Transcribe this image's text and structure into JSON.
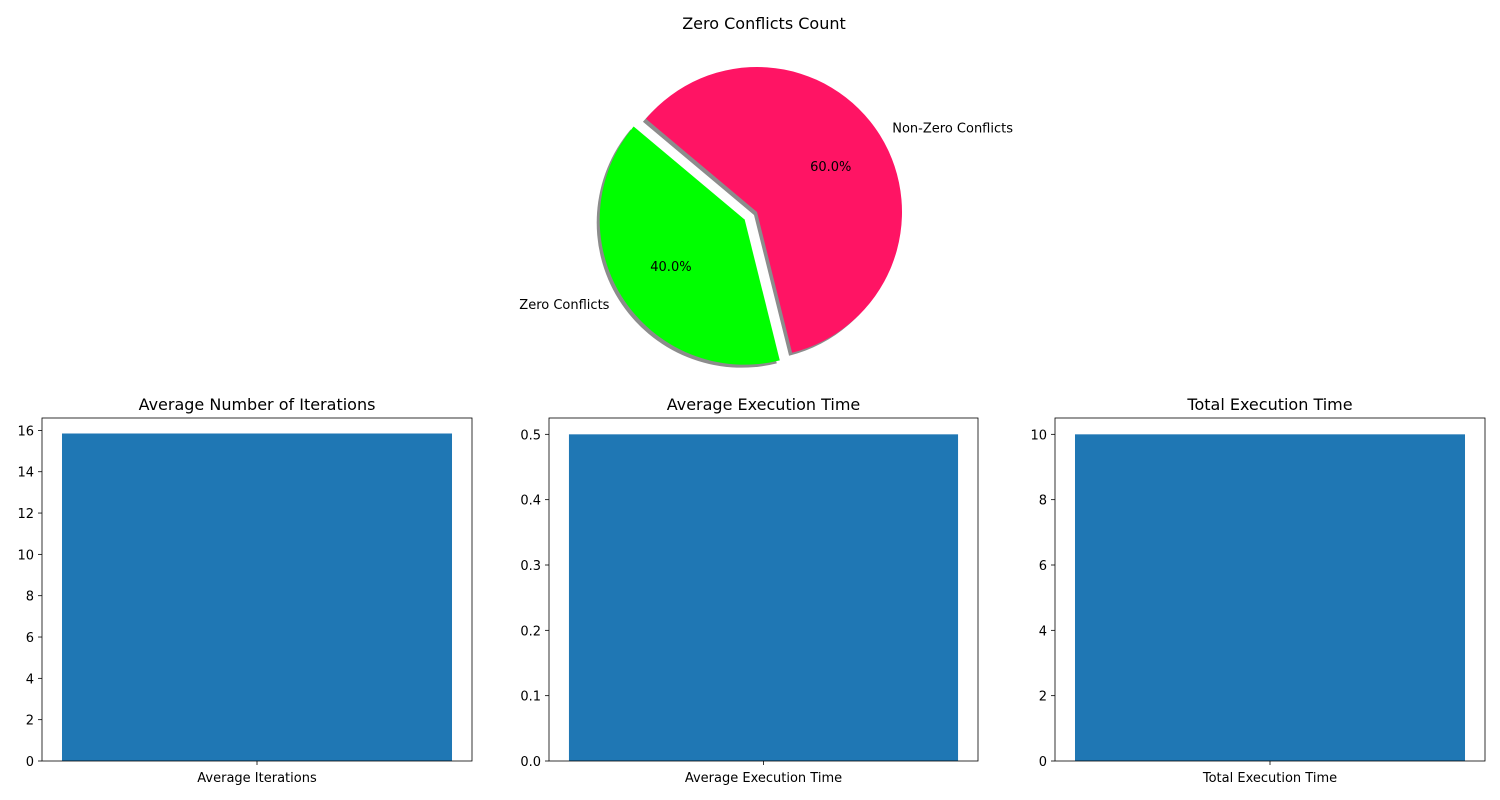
{
  "chart_data": [
    {
      "type": "pie",
      "title": "Zero Conflicts Count",
      "slices": [
        {
          "label": "Zero Conflicts",
          "value": 40.0,
          "pct_label": "40.0%",
          "color": "#00ff00",
          "exploded": true
        },
        {
          "label": "Non-Zero Conflicts",
          "value": 60.0,
          "pct_label": "60.0%",
          "color": "#ff1464",
          "exploded": false
        }
      ],
      "shadow": true
    },
    {
      "type": "bar",
      "title": "Average Number of Iterations",
      "categories": [
        "Average Iterations"
      ],
      "values": [
        15.85
      ],
      "ylim": [
        0,
        16.6
      ],
      "yticks": [
        0,
        2,
        4,
        6,
        8,
        10,
        12,
        14,
        16
      ],
      "ytick_labels": [
        "0",
        "2",
        "4",
        "6",
        "8",
        "10",
        "12",
        "14",
        "16"
      ],
      "color": "#1f77b4"
    },
    {
      "type": "bar",
      "title": "Average Execution Time",
      "categories": [
        "Average Execution Time"
      ],
      "values": [
        0.5
      ],
      "ylim": [
        0,
        0.525
      ],
      "yticks": [
        0.0,
        0.1,
        0.2,
        0.3,
        0.4,
        0.5
      ],
      "ytick_labels": [
        "0.0",
        "0.1",
        "0.2",
        "0.3",
        "0.4",
        "0.5"
      ],
      "color": "#1f77b4"
    },
    {
      "type": "bar",
      "title": "Total Execution Time",
      "categories": [
        "Total Execution Time"
      ],
      "values": [
        10.0
      ],
      "ylim": [
        0,
        10.5
      ],
      "yticks": [
        0,
        2,
        4,
        6,
        8,
        10
      ],
      "ytick_labels": [
        "0",
        "2",
        "4",
        "6",
        "8",
        "10"
      ],
      "color": "#1f77b4"
    }
  ]
}
